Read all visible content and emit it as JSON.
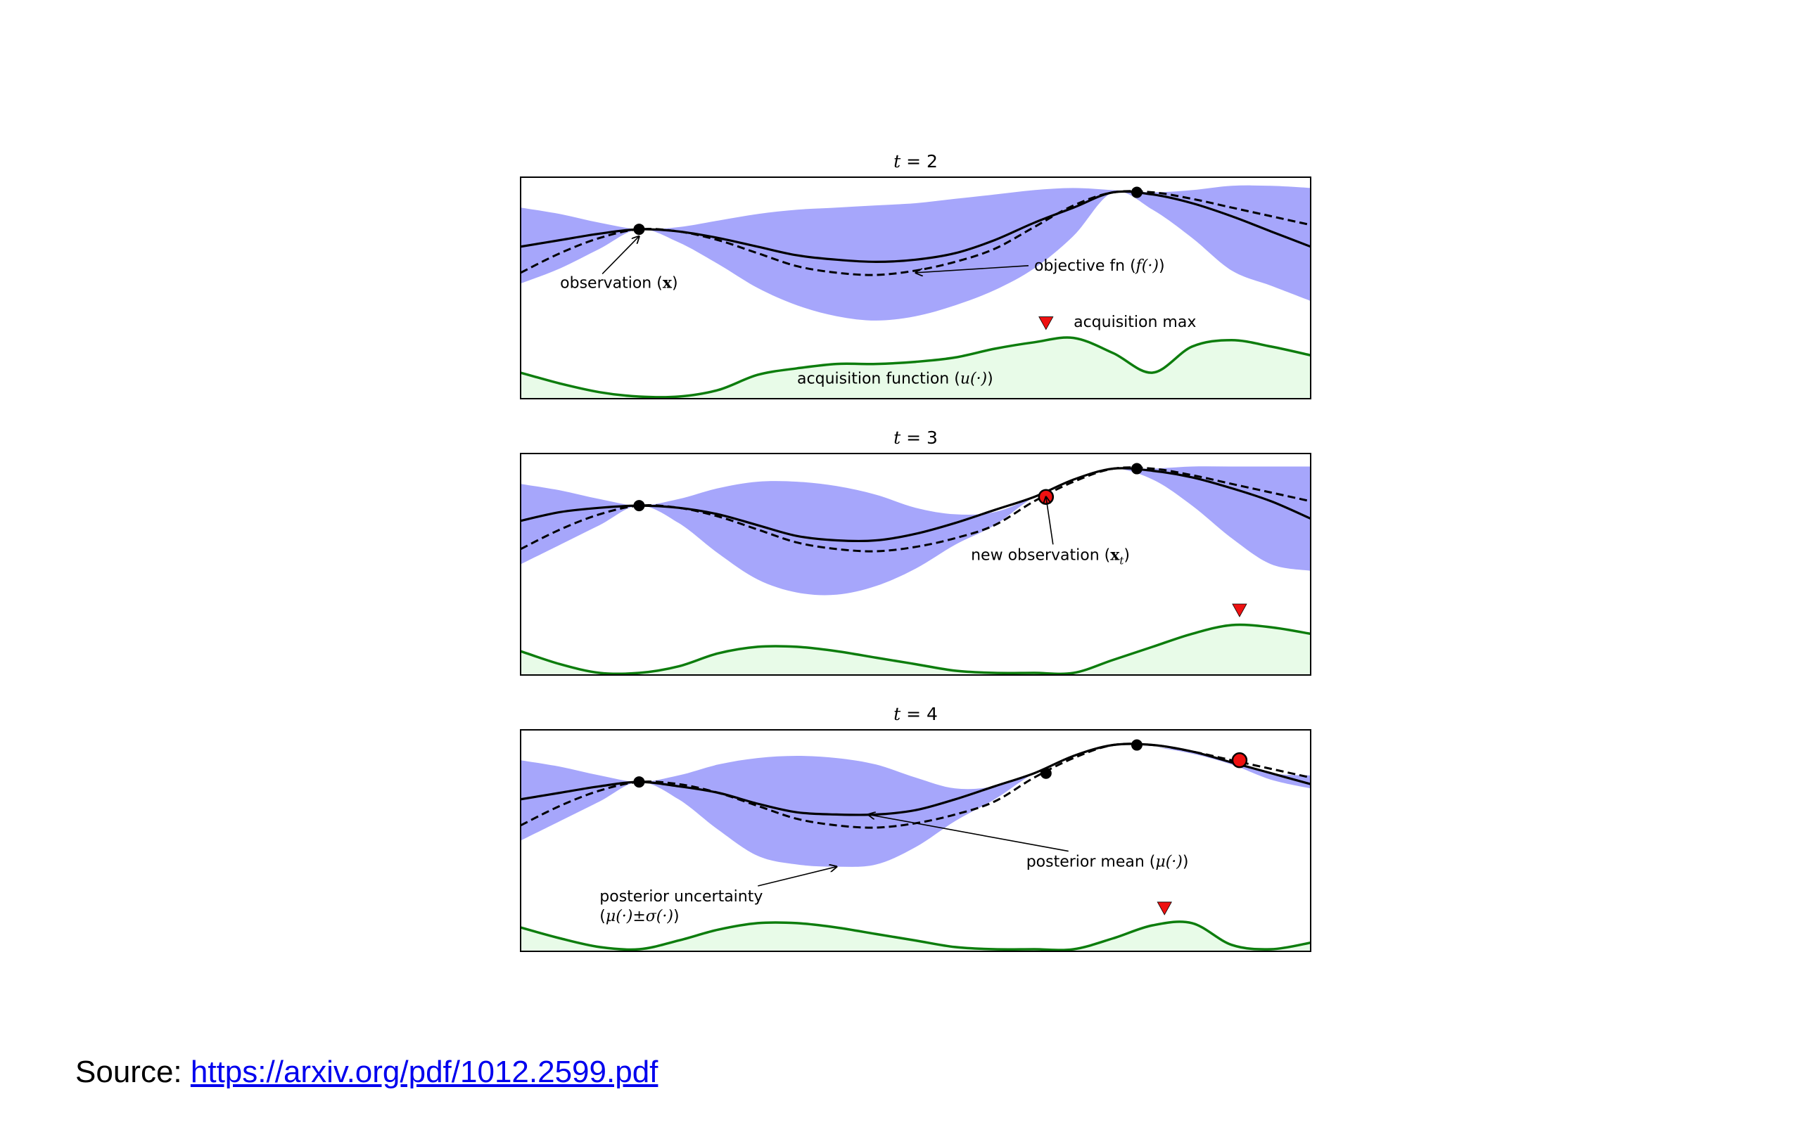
{
  "chart_data": [
    {
      "type": "line",
      "title": "t = 2",
      "title_parts": {
        "var": "t",
        "rest": " = 2"
      },
      "colors": {
        "uncertainty": "#a6a6fb",
        "acquisition_line": "#0d7d0d",
        "acquisition_fill": "#e8fbe8",
        "max_marker": "#ee1111"
      },
      "xlim": [
        0,
        1
      ],
      "ylim": [
        0,
        1
      ],
      "x": [
        0,
        0.05,
        0.1,
        0.15,
        0.2,
        0.25,
        0.3,
        0.35,
        0.4,
        0.45,
        0.5,
        0.55,
        0.6,
        0.65,
        0.7,
        0.75,
        0.8,
        0.85,
        0.9,
        0.95,
        1
      ],
      "series": [
        {
          "role": "upper",
          "values": [
            0.87,
            0.84,
            0.8,
            0.77,
            0.78,
            0.81,
            0.84,
            0.86,
            0.87,
            0.88,
            0.89,
            0.91,
            0.93,
            0.95,
            0.96,
            0.95,
            0.94,
            0.95,
            0.97,
            0.97,
            0.96
          ]
        },
        {
          "role": "lower",
          "values": [
            0.52,
            0.59,
            0.68,
            0.77,
            0.71,
            0.61,
            0.5,
            0.42,
            0.37,
            0.35,
            0.37,
            0.42,
            0.49,
            0.59,
            0.74,
            0.94,
            0.86,
            0.73,
            0.58,
            0.51,
            0.44
          ]
        },
        {
          "role": "mean",
          "values": [
            0.69,
            0.72,
            0.75,
            0.77,
            0.76,
            0.73,
            0.69,
            0.65,
            0.63,
            0.62,
            0.63,
            0.66,
            0.72,
            0.8,
            0.87,
            0.94,
            0.93,
            0.89,
            0.83,
            0.76,
            0.69
          ]
        },
        {
          "role": "objective",
          "values": [
            0.57,
            0.66,
            0.73,
            0.77,
            0.76,
            0.72,
            0.66,
            0.6,
            0.57,
            0.56,
            0.58,
            0.62,
            0.68,
            0.78,
            0.88,
            0.94,
            0.94,
            0.91,
            0.87,
            0.83,
            0.79
          ]
        },
        {
          "role": "acquisition",
          "values": [
            0.11,
            0.06,
            0.02,
            0.0,
            0.0,
            0.03,
            0.1,
            0.13,
            0.15,
            0.15,
            0.16,
            0.18,
            0.22,
            0.25,
            0.27,
            0.2,
            0.11,
            0.23,
            0.26,
            0.23,
            0.19
          ]
        }
      ],
      "observations": [
        {
          "x": 0.15,
          "y": 0.77
        },
        {
          "x": 0.78,
          "y": 0.94
        }
      ],
      "new_observations": [],
      "acquisition_max_x": 0.665,
      "annotations": [
        {
          "text": "observation (",
          "math": "x",
          "math_style": "bold",
          "close": ")",
          "target": [
            0.15,
            0.77
          ],
          "text_pos": [
            0.05,
            0.5
          ]
        },
        {
          "text": "objective fn (",
          "math": "f(·)",
          "math_style": "italic",
          "close": ")",
          "target": [
            0.5,
            0.57
          ],
          "text_pos": [
            0.65,
            0.58
          ]
        },
        {
          "text": "acquisition max",
          "math": "",
          "math_style": "",
          "close": "",
          "target": null,
          "text_pos": [
            0.7,
            0.32
          ]
        },
        {
          "text": "acquisition function (",
          "math": "u(·)",
          "math_style": "italic",
          "close": ")",
          "target": null,
          "text_pos": [
            0.35,
            0.06
          ]
        }
      ]
    },
    {
      "type": "line",
      "title": "t = 3",
      "title_parts": {
        "var": "t",
        "rest": " = 3"
      },
      "colors": {
        "uncertainty": "#a6a6fb",
        "acquisition_line": "#0d7d0d",
        "acquisition_fill": "#e8fbe8",
        "max_marker": "#ee1111"
      },
      "xlim": [
        0,
        1
      ],
      "ylim": [
        0,
        1
      ],
      "x": [
        0,
        0.05,
        0.1,
        0.15,
        0.2,
        0.25,
        0.3,
        0.35,
        0.4,
        0.45,
        0.5,
        0.55,
        0.6,
        0.65,
        0.7,
        0.75,
        0.8,
        0.85,
        0.9,
        0.95,
        1
      ],
      "series": [
        {
          "role": "upper",
          "values": [
            0.87,
            0.84,
            0.8,
            0.77,
            0.8,
            0.85,
            0.88,
            0.88,
            0.86,
            0.82,
            0.76,
            0.73,
            0.74,
            0.81,
            0.89,
            0.94,
            0.94,
            0.95,
            0.95,
            0.95,
            0.95
          ]
        },
        {
          "role": "lower",
          "values": [
            0.5,
            0.59,
            0.68,
            0.77,
            0.69,
            0.55,
            0.43,
            0.37,
            0.36,
            0.4,
            0.48,
            0.59,
            0.68,
            0.81,
            0.89,
            0.94,
            0.89,
            0.77,
            0.62,
            0.5,
            0.47
          ]
        },
        {
          "role": "mean",
          "values": [
            0.7,
            0.74,
            0.76,
            0.77,
            0.76,
            0.73,
            0.68,
            0.63,
            0.61,
            0.61,
            0.64,
            0.69,
            0.75,
            0.81,
            0.89,
            0.94,
            0.93,
            0.9,
            0.85,
            0.79,
            0.71
          ]
        },
        {
          "role": "objective",
          "values": [
            0.57,
            0.66,
            0.73,
            0.77,
            0.76,
            0.72,
            0.66,
            0.6,
            0.57,
            0.56,
            0.58,
            0.62,
            0.68,
            0.79,
            0.88,
            0.94,
            0.94,
            0.91,
            0.87,
            0.83,
            0.79
          ]
        },
        {
          "role": "acquisition",
          "values": [
            0.1,
            0.04,
            0.0,
            0.0,
            0.03,
            0.09,
            0.12,
            0.12,
            0.1,
            0.07,
            0.04,
            0.01,
            0.0,
            0.0,
            0.0,
            0.06,
            0.12,
            0.18,
            0.22,
            0.21,
            0.18
          ]
        }
      ],
      "observations": [
        {
          "x": 0.15,
          "y": 0.77
        },
        {
          "x": 0.78,
          "y": 0.94
        }
      ],
      "new_observations": [
        {
          "x": 0.665,
          "y": 0.81
        }
      ],
      "acquisition_max_x": 0.91,
      "annotations": [
        {
          "text": "new observation (",
          "math": "x",
          "math_style": "bold",
          "sub": "t",
          "close": ")",
          "target": [
            0.665,
            0.81
          ],
          "text_pos": [
            0.57,
            0.52
          ]
        }
      ]
    },
    {
      "type": "line",
      "title": "t = 4",
      "title_parts": {
        "var": "t",
        "rest": " = 4"
      },
      "colors": {
        "uncertainty": "#a6a6fb",
        "acquisition_line": "#0d7d0d",
        "acquisition_fill": "#e8fbe8",
        "max_marker": "#ee1111"
      },
      "xlim": [
        0,
        1
      ],
      "ylim": [
        0,
        1
      ],
      "x": [
        0,
        0.05,
        0.1,
        0.15,
        0.2,
        0.25,
        0.3,
        0.35,
        0.4,
        0.45,
        0.5,
        0.55,
        0.6,
        0.65,
        0.7,
        0.75,
        0.8,
        0.85,
        0.9,
        0.95,
        1
      ],
      "series": [
        {
          "role": "upper",
          "values": [
            0.87,
            0.84,
            0.8,
            0.77,
            0.8,
            0.85,
            0.88,
            0.89,
            0.88,
            0.85,
            0.79,
            0.74,
            0.75,
            0.81,
            0.89,
            0.94,
            0.93,
            0.91,
            0.86,
            0.81,
            0.8
          ]
        },
        {
          "role": "lower",
          "values": [
            0.5,
            0.59,
            0.68,
            0.77,
            0.69,
            0.55,
            0.43,
            0.39,
            0.38,
            0.39,
            0.47,
            0.59,
            0.69,
            0.81,
            0.89,
            0.94,
            0.93,
            0.9,
            0.85,
            0.78,
            0.74
          ]
        },
        {
          "role": "mean",
          "values": [
            0.69,
            0.72,
            0.75,
            0.77,
            0.75,
            0.72,
            0.67,
            0.63,
            0.62,
            0.62,
            0.64,
            0.69,
            0.75,
            0.81,
            0.89,
            0.94,
            0.94,
            0.91,
            0.86,
            0.81,
            0.76
          ]
        },
        {
          "role": "objective",
          "values": [
            0.57,
            0.66,
            0.73,
            0.77,
            0.76,
            0.72,
            0.66,
            0.6,
            0.57,
            0.56,
            0.58,
            0.62,
            0.68,
            0.79,
            0.88,
            0.94,
            0.94,
            0.91,
            0.87,
            0.83,
            0.79
          ]
        },
        {
          "role": "acquisition",
          "values": [
            0.1,
            0.05,
            0.01,
            0.0,
            0.04,
            0.09,
            0.12,
            0.12,
            0.1,
            0.07,
            0.04,
            0.01,
            0.0,
            0.0,
            0.0,
            0.05,
            0.11,
            0.12,
            0.02,
            0.0,
            0.03
          ]
        }
      ],
      "observations": [
        {
          "x": 0.15,
          "y": 0.77
        },
        {
          "x": 0.665,
          "y": 0.81
        },
        {
          "x": 0.78,
          "y": 0.94
        }
      ],
      "new_observations": [
        {
          "x": 0.91,
          "y": 0.87
        }
      ],
      "acquisition_max_x": 0.815,
      "annotations": [
        {
          "text": "posterior mean (",
          "math": "μ(·)",
          "math_style": "italic",
          "close": ")",
          "target": [
            0.44,
            0.62
          ],
          "text_pos": [
            0.64,
            0.38
          ]
        },
        {
          "text": "posterior uncertainty",
          "math": "",
          "math_style": "",
          "close": "",
          "target": [
            0.4,
            0.38
          ],
          "text_pos": [
            0.1,
            0.22
          ]
        },
        {
          "text": "(",
          "math": "μ(·)±σ(·)",
          "math_style": "italic",
          "close": ")",
          "target": null,
          "text_pos": [
            0.1,
            0.13
          ]
        }
      ]
    }
  ],
  "source": {
    "label": "Source: ",
    "link_text": "https://arxiv.org/pdf/1012.2599.pdf"
  }
}
